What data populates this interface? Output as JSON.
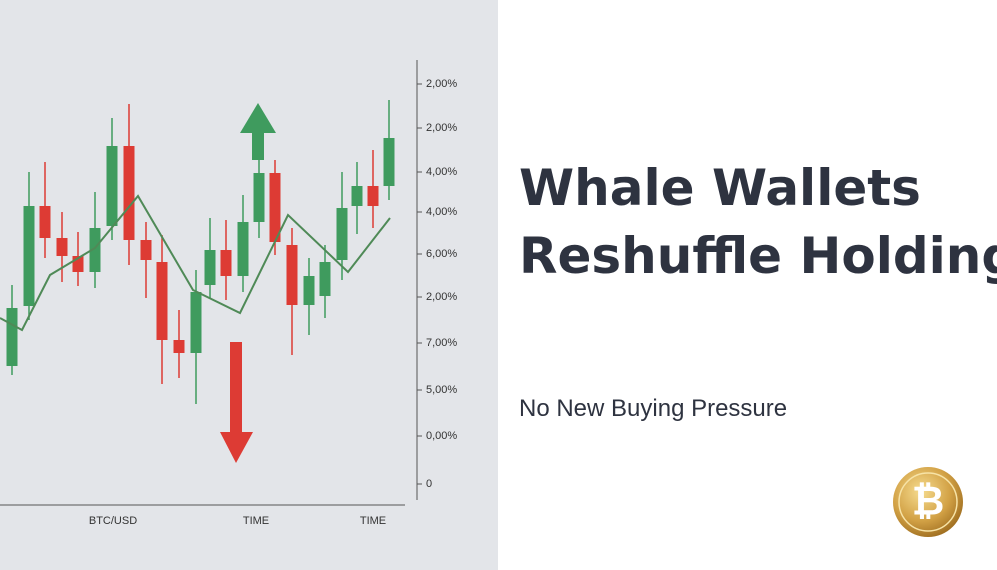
{
  "headline": {
    "line1": "Whale Wallets",
    "line2": "Reshuffle Holdings"
  },
  "subheadline": "No New Buying Pressure",
  "chart": {
    "y_labels": [
      "2,00%",
      "2,00%",
      "4,00%",
      "4,00%",
      "6,00%",
      "2,00%",
      "7,00%",
      "5,00%",
      "0,00%",
      "0"
    ],
    "x_labels": [
      "BTC/USD",
      "TIME",
      "TIME"
    ]
  },
  "logo": "₿"
}
